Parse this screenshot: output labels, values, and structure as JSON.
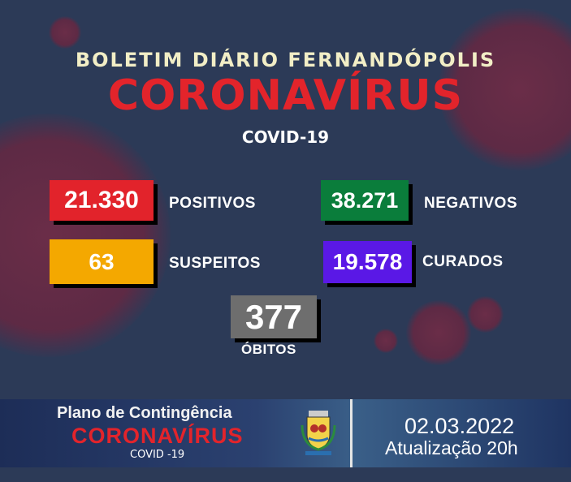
{
  "header": {
    "title": "BOLETIM DIÁRIO FERNANDÓPOLIS",
    "headline": "CORONAVÍRUS",
    "subtitle": "COVID-19"
  },
  "stats": {
    "positivos": {
      "value": "21.330",
      "label": "POSITIVOS",
      "color": "#e2232b"
    },
    "negativos": {
      "value": "38.271",
      "label": "NEGATIVOS",
      "color": "#0a7d3b"
    },
    "suspeitos": {
      "value": "63",
      "label": "SUSPEITOS",
      "color": "#f4a800"
    },
    "curados": {
      "value": "19.578",
      "label": "CURADOS",
      "color": "#5a18e6"
    },
    "obitos": {
      "value": "377",
      "label": "ÓBITOS",
      "color": "#6e6e6e"
    }
  },
  "footer": {
    "plan": "Plano de Contingência",
    "headline": "CORONAVÍRUS",
    "covid": "COVID -19",
    "date": "02.03.2022",
    "update": "Atualização 20h",
    "emblem": "city-coat-of-arms"
  }
}
